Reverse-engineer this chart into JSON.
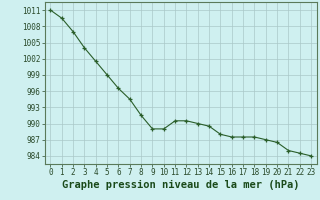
{
  "x": [
    0,
    1,
    2,
    3,
    4,
    5,
    6,
    7,
    8,
    9,
    10,
    11,
    12,
    13,
    14,
    15,
    16,
    17,
    18,
    19,
    20,
    21,
    22,
    23
  ],
  "y": [
    1011,
    1009.5,
    1007,
    1004,
    1001.5,
    999,
    996.5,
    994.5,
    991.5,
    989,
    989,
    990.5,
    990.5,
    990,
    989.5,
    988,
    987.5,
    987.5,
    987.5,
    987,
    986.5,
    985,
    984.5,
    984
  ],
  "line_color": "#2a5e2a",
  "marker": "+",
  "marker_color": "#2a5e2a",
  "bg_color": "#cff0f0",
  "grid_color": "#aac8c8",
  "xlabel": "Graphe pression niveau de la mer (hPa)",
  "xlabel_fontsize": 7.5,
  "ylabel_ticks": [
    984,
    987,
    990,
    993,
    996,
    999,
    1002,
    1005,
    1008,
    1011
  ],
  "ylim": [
    982.5,
    1012.5
  ],
  "xlim": [
    -0.5,
    23.5
  ],
  "tick_fontsize": 5.5,
  "figwidth": 3.2,
  "figheight": 2.0,
  "dpi": 100
}
